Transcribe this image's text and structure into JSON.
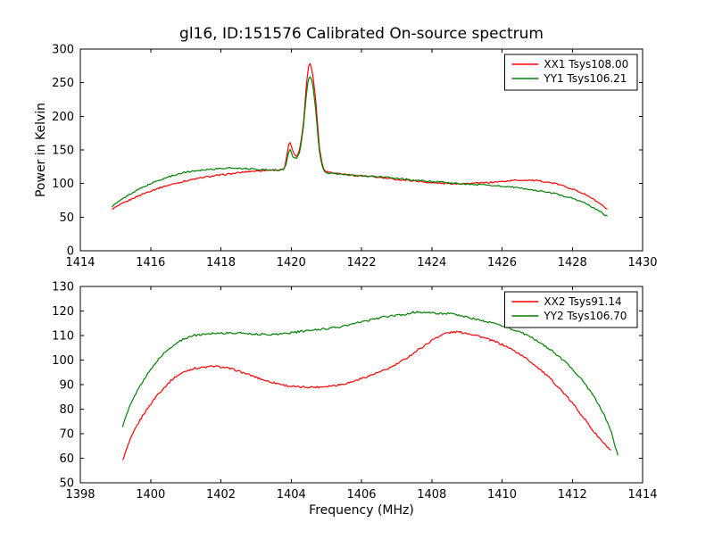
{
  "figure": {
    "background": "#ffffff",
    "frame_color": "#000000"
  },
  "chart_data": [
    {
      "type": "line",
      "title": "gl16, ID:151576 Calibrated On-source spectrum",
      "xlabel": "",
      "ylabel": "Power in Kelvin",
      "xlim": [
        1414,
        1430
      ],
      "ylim": [
        0,
        300
      ],
      "x_ticks": [
        1414,
        1416,
        1418,
        1420,
        1422,
        1424,
        1426,
        1428,
        1430
      ],
      "y_ticks": [
        0,
        50,
        100,
        150,
        200,
        250,
        300
      ],
      "grid": false,
      "legend_position": "upper right",
      "series": [
        {
          "name": "XX1 Tsys108.00",
          "color": "#ff0000",
          "x": [
            1414.9,
            1415.2,
            1415.5,
            1415.8,
            1416.1,
            1416.4,
            1416.7,
            1417.0,
            1417.3,
            1417.6,
            1417.9,
            1418.2,
            1418.5,
            1418.8,
            1419.1,
            1419.4,
            1419.6,
            1419.8,
            1419.87,
            1419.95,
            1420.05,
            1420.15,
            1420.25,
            1420.35,
            1420.45,
            1420.52,
            1420.6,
            1420.7,
            1420.8,
            1420.9,
            1421.0,
            1421.2,
            1421.5,
            1421.8,
            1422.1,
            1422.5,
            1423.0,
            1423.5,
            1424.0,
            1424.5,
            1425.0,
            1425.5,
            1426.0,
            1426.4,
            1426.8,
            1427.2,
            1427.6,
            1428.0,
            1428.4,
            1428.7,
            1429.0
          ],
          "y": [
            62,
            70,
            78,
            85,
            91,
            96,
            100,
            104,
            107,
            110,
            112,
            114,
            116,
            118,
            119,
            120,
            120,
            121,
            138,
            165,
            147,
            140,
            152,
            190,
            258,
            282,
            268,
            225,
            155,
            124,
            118,
            116,
            114,
            112,
            111,
            109,
            106,
            104,
            101,
            100,
            100,
            101,
            103,
            105,
            105,
            103,
            99,
            92,
            83,
            73,
            61
          ]
        },
        {
          "name": "YY1 Tsys106.21",
          "color": "#008000",
          "x": [
            1414.9,
            1415.2,
            1415.5,
            1415.8,
            1416.1,
            1416.4,
            1416.7,
            1417.0,
            1417.3,
            1417.6,
            1417.9,
            1418.2,
            1418.5,
            1418.8,
            1419.1,
            1419.4,
            1419.6,
            1419.8,
            1419.87,
            1419.95,
            1420.05,
            1420.15,
            1420.25,
            1420.35,
            1420.45,
            1420.52,
            1420.6,
            1420.7,
            1420.8,
            1420.9,
            1421.0,
            1421.2,
            1421.5,
            1421.8,
            1422.1,
            1422.5,
            1423.0,
            1423.5,
            1424.0,
            1424.5,
            1425.0,
            1425.5,
            1426.0,
            1426.4,
            1426.8,
            1427.2,
            1427.6,
            1428.0,
            1428.4,
            1428.7,
            1429.0
          ],
          "y": [
            66,
            77,
            87,
            95,
            102,
            108,
            113,
            117,
            119,
            121,
            122,
            123,
            123,
            122,
            121,
            120,
            120,
            121,
            132,
            152,
            140,
            136,
            148,
            185,
            242,
            262,
            252,
            210,
            148,
            121,
            116,
            115,
            113,
            112,
            111,
            110,
            108,
            105,
            103,
            101,
            99,
            98,
            96,
            94,
            91,
            88,
            84,
            78,
            70,
            61,
            51
          ]
        }
      ]
    },
    {
      "type": "line",
      "title": "",
      "xlabel": "Frequency (MHz)",
      "ylabel": "",
      "xlim": [
        1398,
        1414
      ],
      "ylim": [
        50,
        130
      ],
      "x_ticks": [
        1398,
        1400,
        1402,
        1404,
        1406,
        1408,
        1410,
        1412,
        1414
      ],
      "y_ticks": [
        50,
        60,
        70,
        80,
        90,
        100,
        110,
        120,
        130
      ],
      "grid": false,
      "legend_position": "upper right",
      "series": [
        {
          "name": "XX2 Tsys91.14",
          "color": "#ff0000",
          "x": [
            1399.2,
            1399.4,
            1399.6,
            1399.8,
            1400.0,
            1400.2,
            1400.4,
            1400.6,
            1400.8,
            1401.0,
            1401.2,
            1401.5,
            1401.8,
            1402.1,
            1402.4,
            1402.7,
            1403.0,
            1403.3,
            1403.6,
            1403.9,
            1404.2,
            1404.5,
            1404.8,
            1405.1,
            1405.4,
            1405.7,
            1406.0,
            1406.3,
            1406.6,
            1406.9,
            1407.2,
            1407.5,
            1407.8,
            1408.1,
            1408.4,
            1408.7,
            1409.0,
            1409.3,
            1409.6,
            1409.9,
            1410.2,
            1410.5,
            1410.8,
            1411.1,
            1411.4,
            1411.7,
            1412.0,
            1412.3,
            1412.6,
            1412.9,
            1413.1
          ],
          "y": [
            59,
            67,
            73,
            78,
            82,
            86,
            89,
            92,
            94,
            95.5,
            96.5,
            97,
            97.5,
            97,
            96,
            94.5,
            93,
            91.5,
            90.5,
            89.5,
            89,
            89,
            89,
            89.5,
            90,
            91,
            92.5,
            94,
            95.5,
            97.5,
            100,
            103,
            106,
            109,
            111,
            111.5,
            111,
            110,
            108.5,
            107,
            105,
            102.5,
            99.5,
            96,
            92,
            87.5,
            82.5,
            77,
            71,
            66,
            63
          ]
        },
        {
          "name": "YY2 Tsys106.70",
          "color": "#008000",
          "x": [
            1399.2,
            1399.4,
            1399.6,
            1399.8,
            1400.0,
            1400.2,
            1400.4,
            1400.6,
            1400.8,
            1401.0,
            1401.2,
            1401.5,
            1401.8,
            1402.1,
            1402.4,
            1402.7,
            1403.0,
            1403.3,
            1403.6,
            1403.9,
            1404.2,
            1404.5,
            1404.8,
            1405.1,
            1405.4,
            1405.7,
            1406.0,
            1406.3,
            1406.6,
            1406.9,
            1407.2,
            1407.5,
            1407.8,
            1408.1,
            1408.4,
            1408.7,
            1409.0,
            1409.3,
            1409.6,
            1409.9,
            1410.2,
            1410.5,
            1410.8,
            1411.1,
            1411.4,
            1411.7,
            1412.0,
            1412.3,
            1412.6,
            1412.9,
            1413.1,
            1413.3
          ],
          "y": [
            73,
            81,
            87,
            92,
            96,
            100,
            103,
            105.5,
            107.5,
            109,
            110,
            110.5,
            111,
            111,
            111,
            111,
            110.5,
            110.5,
            110.5,
            111,
            111.5,
            112,
            112.5,
            113,
            113.5,
            114.5,
            115.5,
            116.5,
            117.5,
            118,
            118.5,
            119.5,
            119.5,
            119,
            119,
            118.5,
            117.5,
            116.5,
            115.5,
            114.5,
            113,
            111.5,
            109.5,
            107,
            104,
            100.5,
            96.5,
            91.5,
            85.5,
            78,
            71,
            61
          ]
        }
      ]
    }
  ]
}
